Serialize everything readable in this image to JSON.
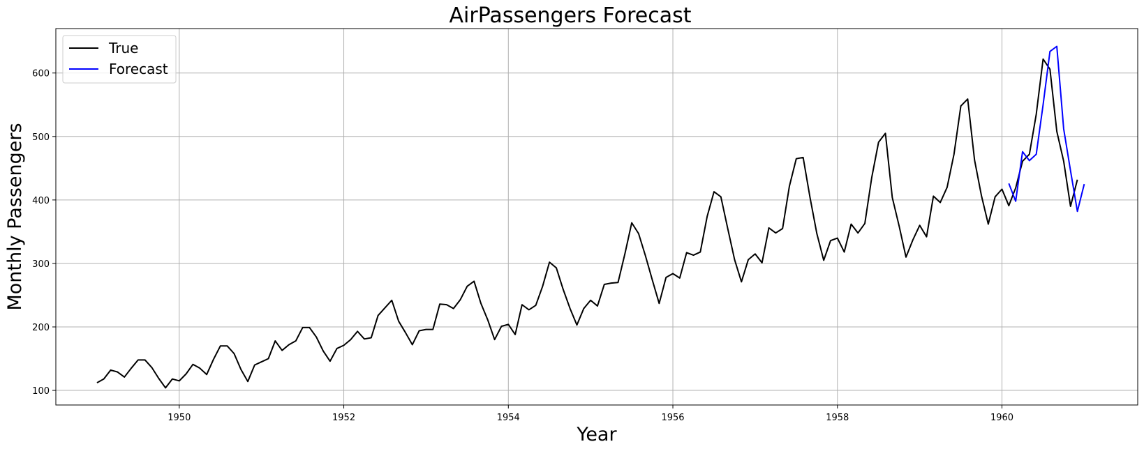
{
  "chart_data": {
    "type": "line",
    "title": "AirPassengers Forecast",
    "xlabel": "Year",
    "ylabel": "Monthly Passengers",
    "xlim": [
      1948.5,
      1961.65
    ],
    "ylim": [
      77,
      670
    ],
    "x_ticks": [
      1950,
      1952,
      1954,
      1956,
      1958,
      1960
    ],
    "x_tick_labels": [
      "1950",
      "1952",
      "1954",
      "1956",
      "1958",
      "1960"
    ],
    "y_ticks": [
      100,
      200,
      300,
      400,
      500,
      600
    ],
    "y_tick_labels": [
      "100",
      "200",
      "300",
      "400",
      "500",
      "600"
    ],
    "grid": true,
    "legend_position": "top-left",
    "series": [
      {
        "name": "True",
        "color": "#000000",
        "x_start": "1949-01",
        "x_step": "month",
        "values": [
          112,
          118,
          132,
          129,
          121,
          135,
          148,
          148,
          136,
          119,
          104,
          118,
          115,
          126,
          141,
          135,
          125,
          149,
          170,
          170,
          158,
          133,
          114,
          140,
          145,
          150,
          178,
          163,
          172,
          178,
          199,
          199,
          184,
          162,
          146,
          166,
          171,
          180,
          193,
          181,
          183,
          218,
          230,
          242,
          209,
          191,
          172,
          194,
          196,
          196,
          236,
          235,
          229,
          243,
          264,
          272,
          237,
          211,
          180,
          201,
          204,
          188,
          235,
          227,
          234,
          264,
          302,
          293,
          259,
          229,
          203,
          229,
          242,
          233,
          267,
          269,
          270,
          315,
          364,
          347,
          312,
          274,
          237,
          278,
          284,
          277,
          317,
          313,
          318,
          374,
          413,
          405,
          355,
          306,
          271,
          306,
          315,
          301,
          356,
          348,
          355,
          422,
          465,
          467,
          404,
          347,
          305,
          336,
          340,
          318,
          362,
          348,
          363,
          435,
          491,
          505,
          404,
          359,
          310,
          337,
          360,
          342,
          406,
          396,
          420,
          472,
          548,
          559,
          463,
          407,
          362,
          405,
          417,
          391,
          419,
          461,
          472,
          535,
          622,
          606,
          508,
          461,
          390,
          432
        ]
      },
      {
        "name": "Forecast",
        "color": "#0000ff",
        "x_start": "1960-02",
        "x_step": "month",
        "values": [
          426,
          398,
          476,
          462,
          472,
          550,
          634,
          642,
          512,
          446,
          382,
          425
        ]
      }
    ]
  }
}
